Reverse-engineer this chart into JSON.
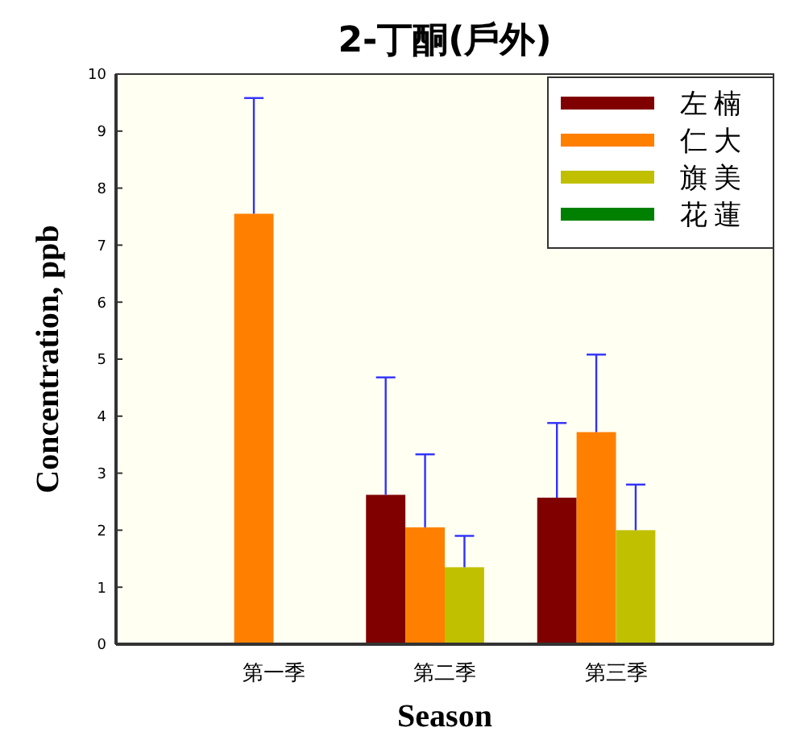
{
  "chart_data": {
    "type": "bar",
    "title": "2-丁酮(戶外)",
    "xlabel": "Season",
    "ylabel": "Concentration, ppb",
    "categories": [
      "第一季",
      "第二季",
      "第三季"
    ],
    "series": [
      {
        "name": "左楠",
        "color": "#800000",
        "values": [
          null,
          2.62,
          2.57
        ],
        "errors": [
          null,
          [
            2.62,
            4.68
          ],
          [
            2.57,
            3.88
          ]
        ]
      },
      {
        "name": "仁大",
        "color": "#ff8000",
        "values": [
          7.55,
          2.05,
          3.72
        ],
        "errors": [
          [
            7.55,
            9.58
          ],
          [
            2.05,
            3.33
          ],
          [
            3.72,
            5.08
          ]
        ]
      },
      {
        "name": "旗美",
        "color": "#c0c000",
        "values": [
          null,
          1.35,
          2.0
        ],
        "errors": [
          null,
          [
            1.35,
            1.9
          ],
          [
            2.0,
            2.8
          ]
        ]
      },
      {
        "name": "花蓮",
        "color": "#008000",
        "values": [
          null,
          null,
          null
        ]
      }
    ],
    "ylim": [
      0,
      10
    ],
    "yticks": [
      0,
      1,
      2,
      3,
      4,
      5,
      6,
      7,
      8,
      9,
      10
    ],
    "legend": "top right",
    "grid": false
  }
}
